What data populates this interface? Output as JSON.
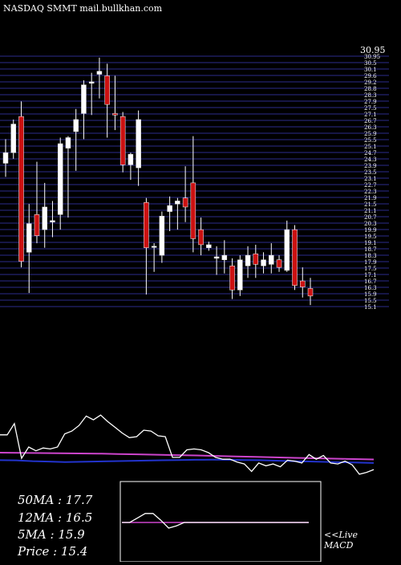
{
  "header": {
    "text": "NASDAQ SMMT mail.bullkhan.com"
  },
  "stats": {
    "ma50": "50MA : 17.7",
    "ma12": "12MA : 16.5",
    "ma5": "5MA : 15.9",
    "price": "Price   : 15.4"
  },
  "labels": {
    "live": "<<Live",
    "macd": "MACD"
  },
  "colors": {
    "background": "#000000",
    "grid": "#2b2b8c",
    "up": "#ffffff",
    "down": "#cc1111",
    "rsi": "#ffffff",
    "ma_purple": "#cc44cc",
    "ma_blue": "#2233cc",
    "macd_signal": "#cc44cc"
  },
  "chart_data": {
    "type": "candlestick",
    "price_axis": {
      "top_label": "30.95",
      "ticks": [
        "30.95",
        "30.5",
        "30.1",
        "29.6",
        "29.2",
        "28.8",
        "28.3",
        "27.9",
        "27.5",
        "27.1",
        "26.7",
        "26.3",
        "25.9",
        "25.5",
        "25.1",
        "24.7",
        "24.3",
        "23.9",
        "23.5",
        "23.1",
        "22.7",
        "22.3",
        "21.9",
        "21.5",
        "21.1",
        "20.7",
        "20.3",
        "19.9",
        "19.5",
        "19.1",
        "18.7",
        "18.3",
        "17.9",
        "17.5",
        "17.1",
        "16.7",
        "16.3",
        "15.9",
        "15.5",
        "15.1"
      ],
      "ylim": [
        14.7,
        31.3
      ]
    },
    "candles": [
      {
        "o": 24.2,
        "h": 25.8,
        "l": 23.3,
        "c": 24.9
      },
      {
        "o": 24.9,
        "h": 27.1,
        "l": 24.5,
        "c": 26.8
      },
      {
        "o": 27.3,
        "h": 28.3,
        "l": 17.3,
        "c": 17.7
      },
      {
        "o": 18.3,
        "h": 21.5,
        "l": 15.6,
        "c": 20.2
      },
      {
        "o": 20.8,
        "h": 24.3,
        "l": 18.9,
        "c": 19.4
      },
      {
        "o": 19.8,
        "h": 22.9,
        "l": 18.6,
        "c": 21.3
      },
      {
        "o": 20.3,
        "h": 21.7,
        "l": 19.3,
        "c": 20.4
      },
      {
        "o": 20.8,
        "h": 25.9,
        "l": 19.8,
        "c": 25.5
      },
      {
        "o": 25.2,
        "h": 26.0,
        "l": 20.6,
        "c": 25.9
      },
      {
        "o": 26.3,
        "h": 27.8,
        "l": 23.7,
        "c": 27.1
      },
      {
        "o": 27.5,
        "h": 29.7,
        "l": 25.8,
        "c": 29.4
      },
      {
        "o": 29.5,
        "h": 30.2,
        "l": 27.4,
        "c": 29.6
      },
      {
        "o": 30.1,
        "h": 31.2,
        "l": 28.5,
        "c": 30.3
      },
      {
        "o": 30.0,
        "h": 30.8,
        "l": 25.9,
        "c": 28.1
      },
      {
        "o": 27.5,
        "h": 30.0,
        "l": 26.4,
        "c": 27.4
      },
      {
        "o": 27.3,
        "h": 27.6,
        "l": 23.6,
        "c": 24.1
      },
      {
        "o": 24.1,
        "h": 24.9,
        "l": 23.1,
        "c": 24.8
      },
      {
        "o": 23.9,
        "h": 27.7,
        "l": 22.7,
        "c": 27.1
      },
      {
        "o": 21.6,
        "h": 21.9,
        "l": 15.5,
        "c": 18.6
      },
      {
        "o": 18.7,
        "h": 18.9,
        "l": 17.0,
        "c": 18.7
      },
      {
        "o": 18.1,
        "h": 21.0,
        "l": 17.6,
        "c": 20.7
      },
      {
        "o": 21.0,
        "h": 22.0,
        "l": 19.7,
        "c": 21.4
      },
      {
        "o": 21.5,
        "h": 21.9,
        "l": 19.8,
        "c": 21.7
      },
      {
        "o": 21.9,
        "h": 24.0,
        "l": 20.3,
        "c": 21.3
      },
      {
        "o": 22.9,
        "h": 26.0,
        "l": 18.3,
        "c": 19.2
      },
      {
        "o": 19.8,
        "h": 20.6,
        "l": 18.1,
        "c": 18.8
      },
      {
        "o": 18.6,
        "h": 19.0,
        "l": 18.4,
        "c": 18.8
      },
      {
        "o": 17.9,
        "h": 18.7,
        "l": 16.8,
        "c": 18.0
      },
      {
        "o": 17.8,
        "h": 19.1,
        "l": 16.9,
        "c": 18.1
      },
      {
        "o": 17.4,
        "h": 17.9,
        "l": 15.2,
        "c": 15.8
      },
      {
        "o": 15.8,
        "h": 18.1,
        "l": 15.4,
        "c": 17.8
      },
      {
        "o": 17.4,
        "h": 18.7,
        "l": 16.6,
        "c": 18.1
      },
      {
        "o": 18.2,
        "h": 18.8,
        "l": 16.6,
        "c": 17.5
      },
      {
        "o": 17.4,
        "h": 18.3,
        "l": 16.9,
        "c": 17.8
      },
      {
        "o": 17.5,
        "h": 18.9,
        "l": 16.9,
        "c": 18.1
      },
      {
        "o": 17.8,
        "h": 18.1,
        "l": 17.0,
        "c": 17.3
      },
      {
        "o": 17.1,
        "h": 20.4,
        "l": 17.0,
        "c": 19.8
      },
      {
        "o": 19.8,
        "h": 20.1,
        "l": 15.8,
        "c": 16.1
      },
      {
        "o": 16.4,
        "h": 17.3,
        "l": 15.3,
        "c": 16.0
      },
      {
        "o": 15.9,
        "h": 16.6,
        "l": 14.8,
        "c": 15.4
      }
    ],
    "rsi": {
      "ylim": [
        0,
        100
      ],
      "values": [
        60,
        60,
        72,
        35,
        47,
        43,
        46,
        45,
        47,
        61,
        64,
        70,
        80,
        76,
        81,
        74,
        68,
        62,
        57,
        58,
        65,
        64,
        59,
        58,
        36,
        36,
        44,
        45,
        44,
        41,
        36,
        34,
        34,
        31,
        29,
        21,
        30,
        27,
        29,
        26,
        33,
        32,
        30,
        39,
        34,
        38,
        30,
        29,
        32,
        28,
        18,
        20,
        23
      ]
    },
    "rsi_ma_purple": [
      41,
      40.8,
      40.6,
      40.4,
      40.2,
      40,
      39.6,
      39.2,
      38.8,
      38.4,
      38,
      37.5,
      37,
      36.5,
      36,
      35.5,
      35,
      34.6,
      34.2,
      33.8
    ],
    "rsi_ma_blue": [
      33,
      32.8,
      32,
      31.5,
      31,
      31.3,
      31.6,
      32,
      32.2,
      32.6,
      32.9,
      33.2,
      33.4,
      33.5,
      33.4,
      33.2,
      33,
      32.5,
      32,
      31.6,
      31.2,
      30.8,
      30.4,
      30
    ],
    "macd": {
      "line": [
        0,
        0,
        0.4,
        0.8,
        0.8,
        0.2,
        -0.5,
        -0.3,
        0,
        0,
        0,
        0,
        0,
        0,
        0,
        0,
        0,
        0,
        0,
        0,
        0,
        0,
        0,
        0,
        0
      ],
      "signal": [
        0,
        0,
        0,
        0,
        0,
        0,
        0,
        0,
        0,
        0,
        0,
        0,
        0,
        0,
        0,
        0,
        0,
        0,
        0,
        0,
        0,
        0,
        0,
        0,
        0
      ]
    }
  }
}
